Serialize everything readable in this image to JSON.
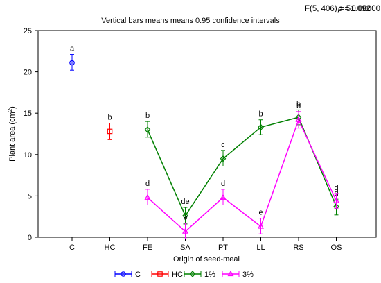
{
  "chart_data": {
    "type": "line",
    "title": "Vertical bars means means 0.95 confidence intervals",
    "stat": {
      "f_text": "F(5, 406) = 51.092",
      "p_label": "p",
      "p_value": " = 0.00000"
    },
    "xlabel": "Origin of seed-meal",
    "ylabel_main": "Plant area (cm",
    "ylabel_sup": "2",
    "ylabel_close": ")",
    "categories": [
      "C",
      "HC",
      "FE",
      "SA",
      "PT",
      "LL",
      "RS",
      "OS"
    ],
    "ylim": [
      0,
      25
    ],
    "yticks": [
      0,
      5,
      10,
      15,
      20,
      25
    ],
    "grid": false,
    "legend_position": "bottom",
    "series": [
      {
        "name": "C",
        "color": "#0000ff",
        "marker": "circle",
        "connect": false,
        "points": [
          {
            "x": "C",
            "y": 21.1,
            "lo": 20.2,
            "hi": 22.1,
            "label": "a"
          }
        ]
      },
      {
        "name": "HC",
        "color": "#ff0000",
        "marker": "square",
        "connect": false,
        "points": [
          {
            "x": "HC",
            "y": 12.8,
            "lo": 11.8,
            "hi": 13.8,
            "label": "b"
          }
        ]
      },
      {
        "name": "1%",
        "color": "#008000",
        "marker": "diamond",
        "connect": true,
        "points": [
          {
            "x": "FE",
            "y": 13.0,
            "lo": 12.1,
            "hi": 14.0,
            "label": "b"
          },
          {
            "x": "SA",
            "y": 2.6,
            "lo": 1.6,
            "hi": 3.6,
            "label": "de"
          },
          {
            "x": "PT",
            "y": 9.5,
            "lo": 8.6,
            "hi": 10.5,
            "label": "c"
          },
          {
            "x": "LL",
            "y": 13.3,
            "lo": 12.4,
            "hi": 14.2,
            "label": "b"
          },
          {
            "x": "RS",
            "y": 14.5,
            "lo": 13.6,
            "hi": 15.4,
            "label": "b"
          },
          {
            "x": "OS",
            "y": 3.7,
            "lo": 2.7,
            "hi": 4.6,
            "label": "d"
          }
        ]
      },
      {
        "name": "3%",
        "color": "#ff00ff",
        "marker": "triangle",
        "connect": true,
        "points": [
          {
            "x": "FE",
            "y": 4.8,
            "lo": 3.9,
            "hi": 5.8,
            "label": "d"
          },
          {
            "x": "SA",
            "y": 0.7,
            "lo": -0.2,
            "hi": 1.7,
            "label": "e"
          },
          {
            "x": "PT",
            "y": 4.8,
            "lo": 3.9,
            "hi": 5.8,
            "label": "d"
          },
          {
            "x": "LL",
            "y": 1.3,
            "lo": 0.4,
            "hi": 2.3,
            "label": "e"
          },
          {
            "x": "RS",
            "y": 14.2,
            "lo": 13.2,
            "hi": 15.2,
            "label": "b"
          },
          {
            "x": "OS",
            "y": 4.4,
            "lo": 3.5,
            "hi": 5.3,
            "label": "d"
          }
        ]
      }
    ]
  }
}
